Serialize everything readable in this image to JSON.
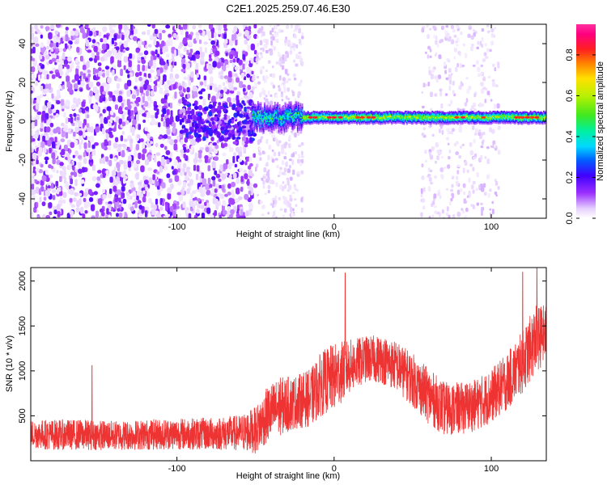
{
  "title": "C2E1.2025.259.07.46.E30",
  "chart_data": [
    {
      "type": "heatmap",
      "title": "C2E1.2025.259.07.46.E30",
      "xlabel": "Height of straight line (km)",
      "ylabel": "Frequency (Hz)",
      "xlim": [
        -193,
        135
      ],
      "ylim": [
        -50,
        50
      ],
      "xticks": [
        -100,
        0,
        100
      ],
      "xtick_labels": [
        "-100",
        "0",
        "100"
      ],
      "yticks": [
        -40,
        -20,
        0,
        20,
        40
      ],
      "ytick_labels": [
        "-40",
        "-20",
        "0",
        "20",
        "40"
      ],
      "colorbar": {
        "label": "Normalized spectral amplitude",
        "range": [
          0,
          0.95
        ],
        "ticks": [
          0.0,
          0.2,
          0.4,
          0.6,
          0.8
        ],
        "tick_labels": [
          "0.0",
          "0.2",
          "0.4",
          "0.6",
          "0.8"
        ],
        "colormap": "rainbow (white-violet-blue-cyan-green-yellow-red-magenta)"
      },
      "features": [
        {
          "name": "broadband noise",
          "x_range": [
            -193,
            -50
          ],
          "freq_range": [
            -50,
            50
          ],
          "amplitude": 0.1
        },
        {
          "name": "sparse noise",
          "x_range": [
            -50,
            -20
          ],
          "freq_range": [
            -50,
            50
          ],
          "amplitude": 0.03
        },
        {
          "name": "sparse noise",
          "x_range": [
            55,
            105
          ],
          "freq_range": [
            -50,
            50
          ],
          "amplitude": 0.03
        },
        {
          "name": "narrowband signal",
          "x_range": [
            -52,
            135
          ],
          "freq_center": 2,
          "peak_amplitude": 0.85
        }
      ]
    },
    {
      "type": "line",
      "title": "",
      "xlabel": "Height of straight line (km)",
      "ylabel": "SNR (10 * v/v)",
      "xlim": [
        -193,
        135
      ],
      "ylim": [
        0,
        2150
      ],
      "xticks": [
        -100,
        0,
        100
      ],
      "xtick_labels": [
        "-100",
        "0",
        "100"
      ],
      "yticks": [
        500,
        1000,
        1500,
        2000
      ],
      "ytick_labels": [
        "500",
        "1000",
        "1500",
        "2000"
      ],
      "color": "#ee3333",
      "series": [
        {
          "name": "SNR",
          "x": [
            -193,
            -180,
            -160,
            -140,
            -120,
            -100,
            -80,
            -60,
            -50,
            -42,
            -35,
            -25,
            -15,
            -8,
            0,
            10,
            20,
            30,
            40,
            50,
            60,
            70,
            80,
            90,
            100,
            110,
            120,
            128,
            135
          ],
          "center": [
            300,
            290,
            290,
            280,
            290,
            300,
            300,
            310,
            340,
            520,
            600,
            650,
            700,
            860,
            930,
            1050,
            1130,
            1130,
            1050,
            900,
            720,
            580,
            580,
            620,
            720,
            880,
            1100,
            1350,
            1420
          ],
          "amplitude": [
            160,
            170,
            170,
            165,
            170,
            175,
            180,
            200,
            260,
            320,
            330,
            300,
            320,
            360,
            380,
            300,
            260,
            270,
            280,
            300,
            310,
            300,
            290,
            290,
            300,
            320,
            350,
            380,
            320
          ]
        }
      ],
      "spikes": [
        {
          "x": -154,
          "y": 1060
        },
        {
          "x": 7,
          "y": 2090
        },
        {
          "x": 120,
          "y": 2100
        },
        {
          "x": 129,
          "y": 2150
        }
      ]
    }
  ]
}
